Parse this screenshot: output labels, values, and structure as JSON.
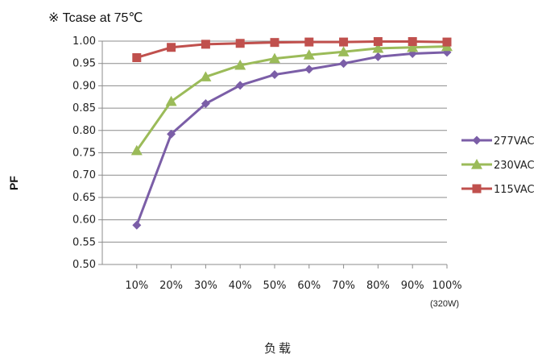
{
  "chart_data": {
    "type": "line",
    "title": "※ Tcase at 75℃",
    "xlabel": "负载",
    "ylabel": "PF",
    "x_note": "(320W)",
    "categories": [
      "10%",
      "20%",
      "30%",
      "40%",
      "50%",
      "60%",
      "70%",
      "80%",
      "90%",
      "100%"
    ],
    "ylim": [
      0.5,
      1.0
    ],
    "yticks": [
      "0.50",
      "0.55",
      "0.60",
      "0.65",
      "0.70",
      "0.75",
      "0.80",
      "0.85",
      "0.90",
      "0.95",
      "1.00"
    ],
    "grid": true,
    "legend_position": "right",
    "series": [
      {
        "name": "277VAC",
        "color": "#7b5ea7",
        "marker": "diamond",
        "values": [
          0.588,
          0.792,
          0.86,
          0.901,
          0.925,
          0.937,
          0.95,
          0.965,
          0.972,
          0.975
        ]
      },
      {
        "name": "230VAC",
        "color": "#9bbb59",
        "marker": "triangle",
        "values": [
          0.755,
          0.865,
          0.92,
          0.946,
          0.961,
          0.969,
          0.976,
          0.984,
          0.986,
          0.988
        ]
      },
      {
        "name": "115VAC",
        "color": "#c0504d",
        "marker": "square",
        "values": [
          0.963,
          0.986,
          0.993,
          0.995,
          0.997,
          0.998,
          0.998,
          0.999,
          0.999,
          0.998
        ]
      }
    ]
  }
}
